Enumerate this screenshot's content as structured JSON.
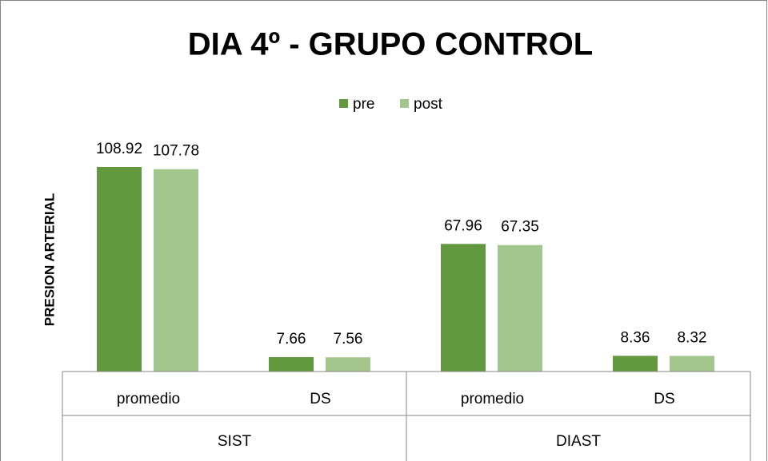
{
  "chart_data": {
    "type": "bar",
    "title": "DIA 4º - GRUPO CONTROL",
    "y_label": "PRESION ARTERIAL",
    "categories": [
      "promedio",
      "DS",
      "promedio",
      "DS"
    ],
    "category_groups": [
      "SIST",
      "DIAST"
    ],
    "series": [
      {
        "name": "pre",
        "color": "#62993e",
        "values": [
          108.92,
          7.66,
          67.96,
          8.36
        ]
      },
      {
        "name": "post",
        "color": "#a3c68c",
        "values": [
          107.78,
          7.56,
          67.35,
          8.32
        ]
      }
    ],
    "legend": "top"
  }
}
